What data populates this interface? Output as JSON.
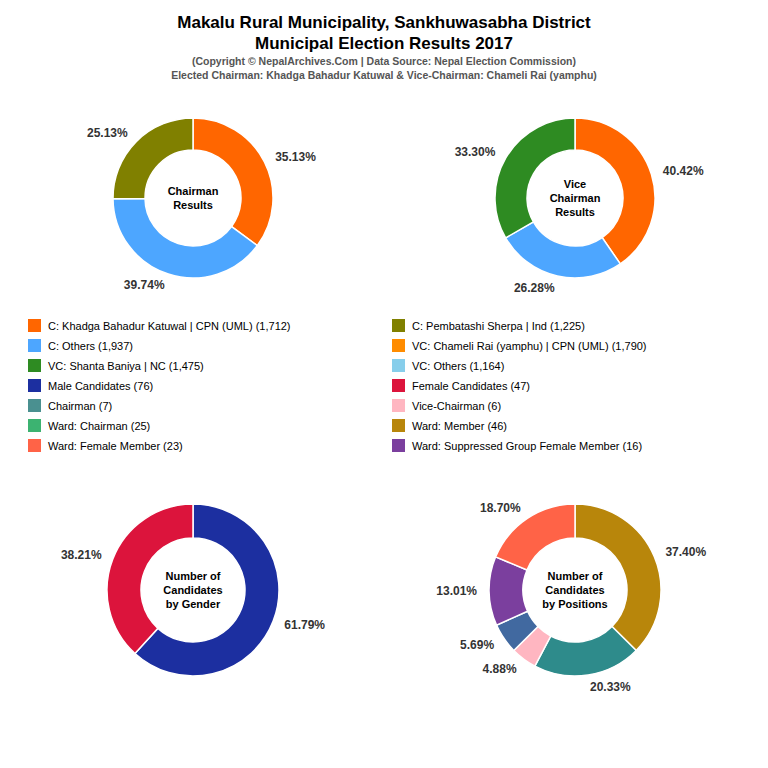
{
  "title": [
    "Makalu Rural Municipality, Sankhuwasabha District",
    "Municipal Election Results 2017"
  ],
  "subtitle": [
    "(Copyright © NepalArchives.Com | Data Source: Nepal Election Commission)",
    "Elected Chairman: Khadga Bahadur Katuwal & Vice-Chairman: Chameli Rai (yamphu)"
  ],
  "legend_items": [
    {
      "label": "C: Khadga Bahadur Katuwal | CPN (UML) (1,712)",
      "color": "#FF6600"
    },
    {
      "label": "C: Pembatashi Sherpa | Ind (1,225)",
      "color": "#808000"
    },
    {
      "label": "C: Others (1,937)",
      "color": "#4DA6FF"
    },
    {
      "label": "VC: Chameli Rai (yamphu) | CPN (UML) (1,790)",
      "color": "#FF8C00"
    },
    {
      "label": "VC: Shanta Baniya | NC (1,475)",
      "color": "#2E8B22"
    },
    {
      "label": "VC: Others (1,164)",
      "color": "#87CEEB"
    },
    {
      "label": "Male Candidates (76)",
      "color": "#1C2FA0"
    },
    {
      "label": "Female Candidates (47)",
      "color": "#DC143C"
    },
    {
      "label": "Chairman (7)",
      "color": "#4A9090"
    },
    {
      "label": "Vice-Chairman (6)",
      "color": "#FFB6C1"
    },
    {
      "label": "Ward: Chairman (25)",
      "color": "#3CB371"
    },
    {
      "label": "Ward: Member (46)",
      "color": "#B8860B"
    },
    {
      "label": "Ward: Female Member (23)",
      "color": "#FF6347"
    },
    {
      "label": "Ward: Suppressed Group Female Member (16)",
      "color": "#7B3F9E"
    }
  ],
  "chart_data": [
    {
      "type": "pie",
      "title": "Chairman\nResults",
      "values": [
        35.13,
        39.74,
        25.13
      ],
      "value_labels": [
        "35.13%",
        "39.74%",
        "25.13%"
      ],
      "colors": [
        "#FF6600",
        "#4DA6FF",
        "#808000"
      ],
      "data_labels": true
    },
    {
      "type": "pie",
      "title": "Vice\nChairman\nResults",
      "values": [
        40.42,
        26.28,
        33.3
      ],
      "value_labels": [
        "40.42%",
        "26.28%",
        "33.30%"
      ],
      "colors": [
        "#FF6600",
        "#4DA6FF",
        "#2E8B22"
      ],
      "data_labels": true
    },
    {
      "type": "pie",
      "title": "Number of\nCandidates\nby Gender",
      "values": [
        61.79,
        38.21
      ],
      "value_labels": [
        "61.79%",
        "38.21%"
      ],
      "colors": [
        "#1C2FA0",
        "#DC143C"
      ],
      "data_labels": true
    },
    {
      "type": "pie",
      "title": "Number of\nCandidates\nby Positions",
      "values": [
        37.4,
        20.33,
        4.88,
        5.69,
        13.01,
        18.7
      ],
      "value_labels": [
        "37.40%",
        "20.33%",
        "4.88%",
        "5.69%",
        "13.01%",
        "18.70%"
      ],
      "colors": [
        "#B8860B",
        "#2E8B8B",
        "#FFB6C1",
        "#4169A0",
        "#7B3F9E",
        "#FF6347"
      ],
      "data_labels": true
    }
  ]
}
